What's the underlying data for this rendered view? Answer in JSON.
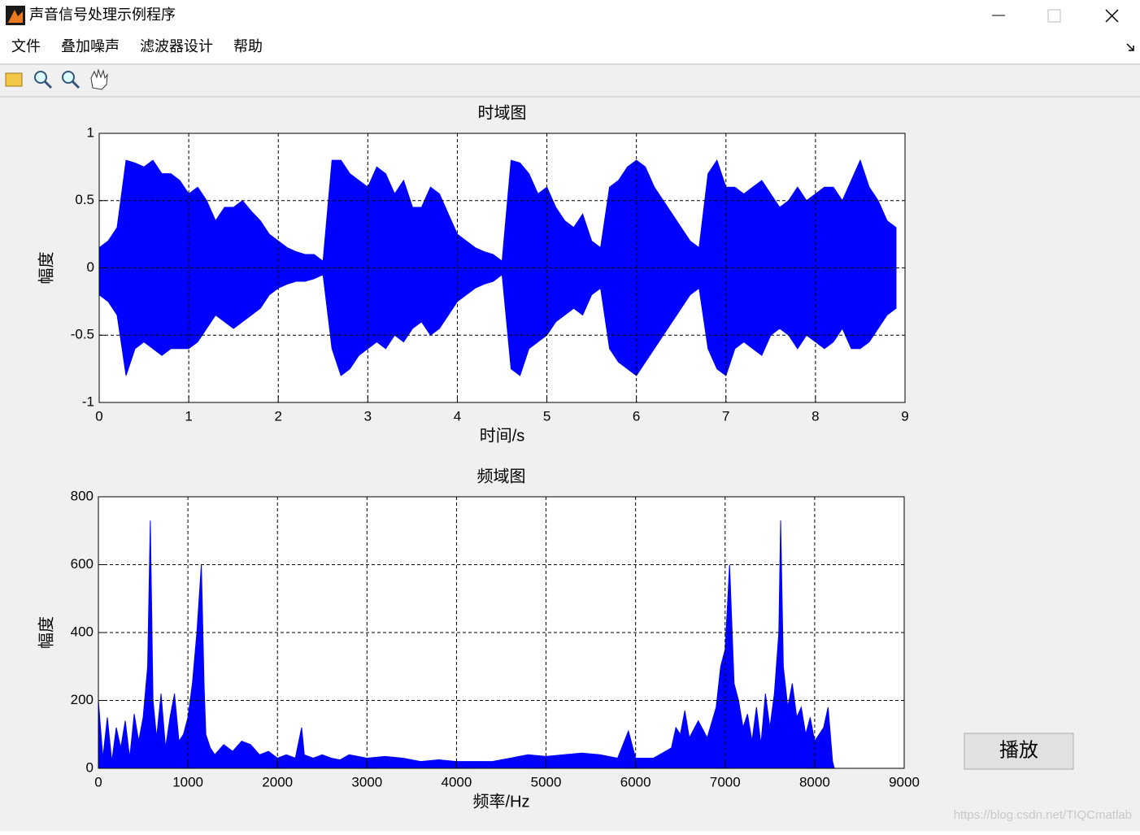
{
  "window": {
    "title": "声音信号处理示例程序"
  },
  "menu": [
    "文件",
    "叠加噪声",
    "滤波器设计",
    "帮助"
  ],
  "chart_data": [
    {
      "type": "area",
      "title": "时域图",
      "xlabel": "时间/s",
      "ylabel": "幅度",
      "grid": true,
      "xlim": [
        0,
        9
      ],
      "xticks": [
        0,
        1,
        2,
        3,
        4,
        5,
        6,
        7,
        8,
        9
      ],
      "ylim": [
        -1,
        1
      ],
      "yticks": [
        -1,
        -0.5,
        0,
        0.5,
        1
      ],
      "x": [
        0,
        0.1,
        0.2,
        0.3,
        0.4,
        0.5,
        0.6,
        0.7,
        0.8,
        0.9,
        1,
        1.1,
        1.2,
        1.3,
        1.4,
        1.5,
        1.6,
        1.7,
        1.8,
        1.9,
        2,
        2.1,
        2.2,
        2.3,
        2.4,
        2.5,
        2.6,
        2.7,
        2.8,
        2.9,
        3,
        3.1,
        3.2,
        3.3,
        3.4,
        3.5,
        3.6,
        3.7,
        3.8,
        3.9,
        4,
        4.1,
        4.2,
        4.3,
        4.4,
        4.5,
        4.6,
        4.7,
        4.8,
        4.9,
        5,
        5.1,
        5.2,
        5.3,
        5.4,
        5.5,
        5.6,
        5.7,
        5.8,
        5.9,
        6,
        6.1,
        6.2,
        6.3,
        6.4,
        6.5,
        6.6,
        6.7,
        6.8,
        6.9,
        7,
        7.1,
        7.2,
        7.3,
        7.4,
        7.5,
        7.6,
        7.7,
        7.8,
        7.9,
        8,
        8.1,
        8.2,
        8.3,
        8.4,
        8.5,
        8.6,
        8.7,
        8.8,
        8.9
      ],
      "series": [
        {
          "color": "#0000ff",
          "values": [
            0.15,
            0.2,
            0.3,
            0.8,
            0.78,
            0.75,
            0.8,
            0.7,
            0.7,
            0.65,
            0.55,
            0.6,
            0.5,
            0.35,
            0.45,
            0.45,
            0.5,
            0.42,
            0.35,
            0.25,
            0.2,
            0.15,
            0.12,
            0.1,
            0.1,
            0.05,
            0.8,
            0.8,
            0.7,
            0.65,
            0.6,
            0.75,
            0.7,
            0.55,
            0.65,
            0.45,
            0.45,
            0.6,
            0.55,
            0.4,
            0.25,
            0.2,
            0.15,
            0.12,
            0.1,
            0.05,
            0.8,
            0.78,
            0.7,
            0.55,
            0.6,
            0.45,
            0.35,
            0.3,
            0.4,
            0.2,
            0.15,
            0.6,
            0.65,
            0.75,
            0.8,
            0.75,
            0.6,
            0.5,
            0.4,
            0.3,
            0.2,
            0.15,
            0.7,
            0.8,
            0.6,
            0.6,
            0.55,
            0.6,
            0.65,
            0.55,
            0.45,
            0.5,
            0.6,
            0.5,
            0.55,
            0.6,
            0.6,
            0.5,
            0.65,
            0.8,
            0.6,
            0.5,
            0.35,
            0.3
          ]
        },
        {
          "color": "#0000ff",
          "values": [
            -0.2,
            -0.25,
            -0.35,
            -0.8,
            -0.6,
            -0.55,
            -0.6,
            -0.65,
            -0.6,
            -0.6,
            -0.6,
            -0.55,
            -0.45,
            -0.35,
            -0.4,
            -0.45,
            -0.4,
            -0.35,
            -0.3,
            -0.2,
            -0.15,
            -0.12,
            -0.1,
            -0.1,
            -0.08,
            -0.05,
            -0.6,
            -0.8,
            -0.75,
            -0.65,
            -0.6,
            -0.55,
            -0.6,
            -0.5,
            -0.55,
            -0.45,
            -0.4,
            -0.5,
            -0.45,
            -0.35,
            -0.25,
            -0.2,
            -0.15,
            -0.12,
            -0.1,
            -0.05,
            -0.75,
            -0.8,
            -0.6,
            -0.55,
            -0.5,
            -0.4,
            -0.35,
            -0.3,
            -0.35,
            -0.2,
            -0.15,
            -0.6,
            -0.7,
            -0.75,
            -0.8,
            -0.7,
            -0.6,
            -0.5,
            -0.4,
            -0.3,
            -0.2,
            -0.15,
            -0.6,
            -0.75,
            -0.8,
            -0.6,
            -0.55,
            -0.6,
            -0.65,
            -0.5,
            -0.45,
            -0.5,
            -0.6,
            -0.5,
            -0.55,
            -0.6,
            -0.55,
            -0.45,
            -0.6,
            -0.6,
            -0.55,
            -0.45,
            -0.35,
            -0.3
          ]
        }
      ]
    },
    {
      "type": "area",
      "title": "频域图",
      "xlabel": "频率/Hz",
      "ylabel": "幅度",
      "grid": true,
      "xlim": [
        0,
        9000
      ],
      "xticks": [
        0,
        1000,
        2000,
        3000,
        4000,
        5000,
        6000,
        7000,
        8000,
        9000
      ],
      "ylim": [
        0,
        800
      ],
      "yticks": [
        0,
        200,
        400,
        600,
        800
      ],
      "x": [
        0,
        50,
        100,
        150,
        200,
        250,
        300,
        350,
        400,
        450,
        500,
        550,
        580,
        610,
        650,
        700,
        750,
        800,
        850,
        900,
        950,
        1000,
        1050,
        1100,
        1150,
        1180,
        1200,
        1250,
        1300,
        1400,
        1500,
        1600,
        1700,
        1800,
        1900,
        2000,
        2100,
        2200,
        2270,
        2300,
        2400,
        2500,
        2600,
        2700,
        2800,
        2900,
        3000,
        3200,
        3400,
        3600,
        3800,
        4000,
        4200,
        4400,
        4600,
        4800,
        5000,
        5200,
        5400,
        5600,
        5800,
        5920,
        6000,
        6200,
        6400,
        6450,
        6500,
        6550,
        6600,
        6700,
        6800,
        6900,
        6950,
        7000,
        7050,
        7100,
        7150,
        7200,
        7250,
        7300,
        7350,
        7400,
        7450,
        7500,
        7550,
        7600,
        7620,
        7650,
        7700,
        7750,
        7800,
        7850,
        7900,
        7950,
        8000,
        8100,
        8150,
        8200,
        8220
      ],
      "series": [
        {
          "color": "#0000ff",
          "values": [
            200,
            30,
            150,
            20,
            120,
            60,
            140,
            30,
            160,
            80,
            150,
            300,
            730,
            200,
            90,
            220,
            60,
            150,
            220,
            80,
            100,
            150,
            250,
            400,
            600,
            250,
            100,
            60,
            40,
            70,
            50,
            80,
            70,
            40,
            50,
            30,
            40,
            30,
            120,
            40,
            30,
            40,
            30,
            25,
            40,
            35,
            30,
            35,
            30,
            20,
            25,
            20,
            20,
            20,
            30,
            40,
            35,
            40,
            45,
            40,
            30,
            110,
            30,
            30,
            60,
            120,
            100,
            170,
            90,
            140,
            90,
            180,
            300,
            350,
            600,
            250,
            200,
            120,
            160,
            80,
            180,
            70,
            220,
            120,
            220,
            400,
            730,
            300,
            180,
            250,
            150,
            180,
            100,
            150,
            80,
            120,
            180,
            20,
            0
          ]
        }
      ]
    }
  ],
  "button": "播放",
  "watermark": "https://blog.csdn.net/TIQCmatlab"
}
